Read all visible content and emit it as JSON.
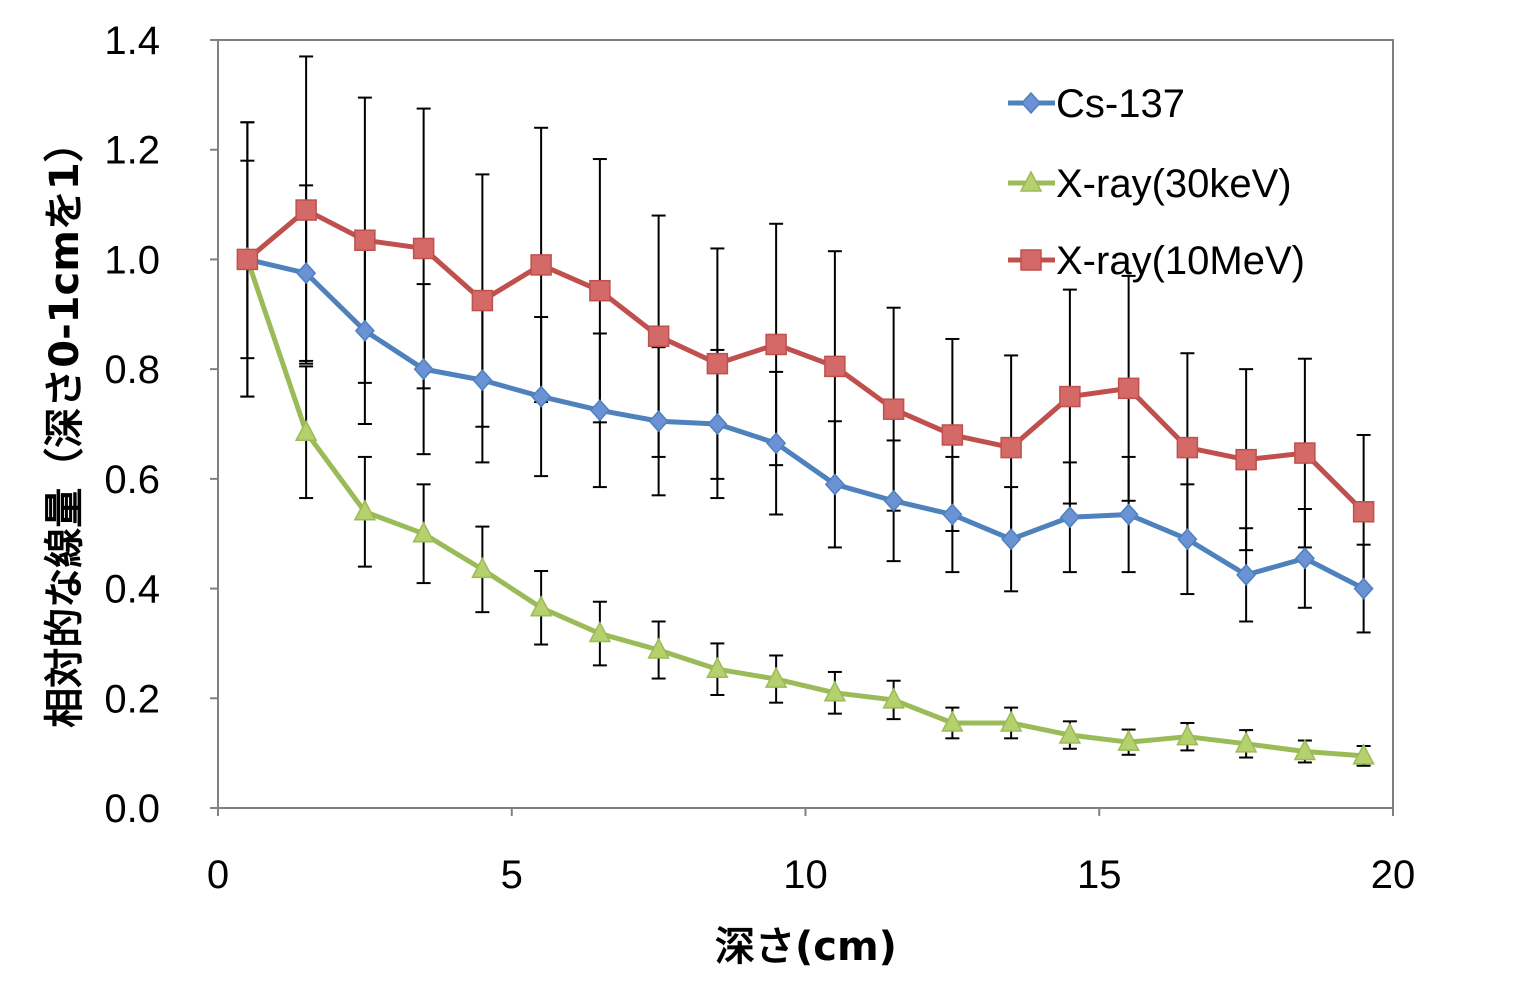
{
  "chart_data": {
    "type": "line",
    "title": "",
    "xlabel": "深さ(cm)",
    "ylabel": "相対的な線量（深さ0-1cmを1）",
    "xlim": [
      0,
      20
    ],
    "ylim": [
      0,
      1.4
    ],
    "xticks": [
      0,
      5,
      10,
      15,
      20
    ],
    "xtick_labels": [
      "0",
      "5",
      "10",
      "15",
      "20"
    ],
    "yticks": [
      0,
      0.2,
      0.4,
      0.6,
      0.8,
      1.0,
      1.2,
      1.4
    ],
    "ytick_labels": [
      "0.0",
      "0.2",
      "0.4",
      "0.6",
      "0.8",
      "1.0",
      "1.2",
      "1.4"
    ],
    "grid": false,
    "legend_position": "top-right",
    "x": [
      0.5,
      1.5,
      2.5,
      3.5,
      4.5,
      5.5,
      6.5,
      7.5,
      8.5,
      9.5,
      10.5,
      11.5,
      12.5,
      13.5,
      14.5,
      15.5,
      16.5,
      17.5,
      18.5,
      19.5
    ],
    "series": [
      {
        "name": "Cs-137",
        "color": "#4F81BD",
        "fill": "#6A92D4",
        "marker": "diamond",
        "values": [
          1.0,
          0.975,
          0.87,
          0.8,
          0.78,
          0.75,
          0.725,
          0.705,
          0.7,
          0.665,
          0.59,
          0.56,
          0.535,
          0.49,
          0.53,
          0.535,
          0.49,
          0.425,
          0.455,
          0.4
        ],
        "errors": [
          0.18,
          0.16,
          0.17,
          0.155,
          0.15,
          0.145,
          0.14,
          0.135,
          0.135,
          0.13,
          0.115,
          0.11,
          0.105,
          0.095,
          0.1,
          0.105,
          0.1,
          0.085,
          0.09,
          0.08
        ]
      },
      {
        "name": "X-ray(30keV)",
        "color": "#9BBB59",
        "fill": "#B5D16E",
        "marker": "triangle",
        "values": [
          1.0,
          0.685,
          0.54,
          0.5,
          0.435,
          0.365,
          0.318,
          0.288,
          0.253,
          0.235,
          0.21,
          0.197,
          0.155,
          0.155,
          0.133,
          0.12,
          0.13,
          0.117,
          0.103,
          0.095
        ],
        "errors": [
          0.25,
          0.12,
          0.1,
          0.09,
          0.078,
          0.067,
          0.058,
          0.052,
          0.047,
          0.043,
          0.038,
          0.035,
          0.028,
          0.028,
          0.025,
          0.023,
          0.025,
          0.025,
          0.02,
          0.018
        ]
      },
      {
        "name": "X-ray(10MeV)",
        "color": "#C0504D",
        "fill": "#D46A67",
        "marker": "square",
        "values": [
          1.0,
          1.09,
          1.035,
          1.02,
          0.925,
          0.99,
          0.943,
          0.86,
          0.81,
          0.845,
          0.805,
          0.727,
          0.68,
          0.657,
          0.75,
          0.765,
          0.657,
          0.635,
          0.647,
          0.54
        ],
        "errors": [
          0.25,
          0.28,
          0.26,
          0.255,
          0.23,
          0.25,
          0.24,
          0.22,
          0.21,
          0.22,
          0.21,
          0.185,
          0.175,
          0.168,
          0.195,
          0.205,
          0.172,
          0.165,
          0.172,
          0.14
        ]
      }
    ]
  }
}
